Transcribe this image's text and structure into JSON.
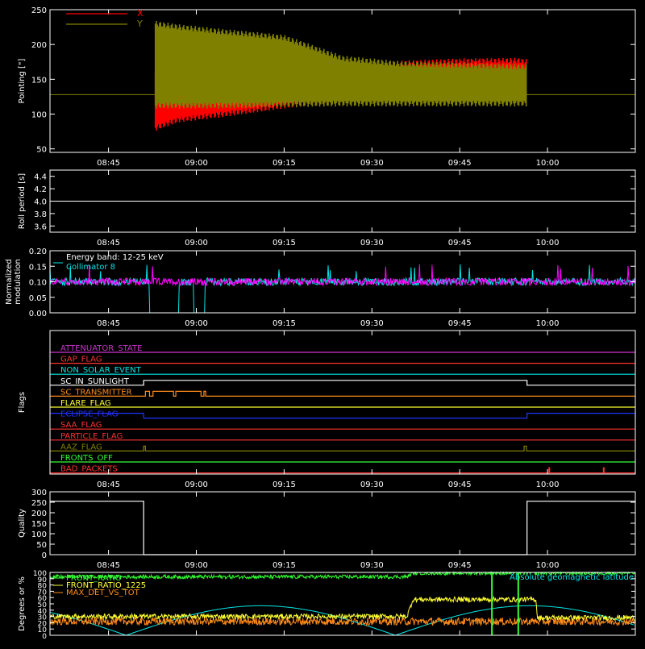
{
  "colors": {
    "background": "#000000",
    "axis": "#ffffff",
    "x_pointing": "#ff0000",
    "y_pointing": "#808000",
    "collimator_magenta": "#ff00ff",
    "collimator_cyan": "#00e6e6",
    "front_ratio": "#33ff33",
    "front_ratio_1225": "#ffff33",
    "max_det": "#ff8c1a",
    "geomag": "#00e6e6"
  },
  "shared_x": {
    "tick_labels": [
      "08:45",
      "09:00",
      "09:15",
      "09:30",
      "09:45",
      "10:00"
    ],
    "tick_minutes": [
      525,
      540,
      555,
      570,
      585,
      600
    ],
    "range_minutes": [
      515,
      615
    ]
  },
  "chart_data": [
    {
      "id": "pointing",
      "type": "area",
      "ylabel": "Pointing [\"]",
      "ylim": [
        45,
        250
      ],
      "yticks": [
        50,
        100,
        150,
        200,
        250
      ],
      "legend": [
        {
          "label": "X",
          "color": "#ff0000"
        },
        {
          "label": "Y",
          "color": "#808000"
        }
      ],
      "baseline_value": 128,
      "series": [
        {
          "name": "X",
          "envelope_minutes": [
            533,
            537,
            545,
            555,
            565,
            575,
            585,
            595,
            596.5
          ],
          "upper": [
            160,
            158,
            150,
            144,
            160,
            173,
            176,
            177,
            175
          ],
          "lower": [
            80,
            92,
            100,
            112,
            120,
            123,
            122,
            120,
            115
          ]
        },
        {
          "name": "Y",
          "envelope_minutes": [
            533,
            537,
            545,
            555,
            565,
            575,
            585,
            595,
            596.5
          ],
          "upper": [
            230,
            225,
            218,
            210,
            180,
            172,
            170,
            168,
            168
          ],
          "lower": [
            112,
            112,
            112,
            114,
            115,
            115,
            115,
            115,
            115
          ]
        }
      ]
    },
    {
      "id": "roll",
      "type": "line",
      "ylabel": "Roll period [s]",
      "ylim": [
        3.5,
        4.5
      ],
      "yticks": [
        3.6,
        3.8,
        4.0,
        4.2,
        4.4
      ],
      "ytick_labels": [
        "3.6",
        "3.8",
        "4.0",
        "4.2",
        "4.4"
      ],
      "value": 4.0
    },
    {
      "id": "modulation",
      "type": "line",
      "ylabel": "Normalized modulation",
      "ylim": [
        0.0,
        0.2
      ],
      "yticks": [
        0.0,
        0.05,
        0.1,
        0.15,
        0.2
      ],
      "ytick_labels": [
        "0.00",
        "0.05",
        "0.10",
        "0.15",
        "0.20"
      ],
      "annotation": "Energy band: 12-25 keV",
      "legend": [
        {
          "label": "Collimator 8",
          "color": "#00e6e6"
        }
      ],
      "mean_value": 0.1,
      "noise": 0.012,
      "cyan_dropouts_minutes": [
        [
          532,
          537
        ],
        [
          539.5,
          541.5
        ]
      ]
    },
    {
      "id": "flags",
      "type": "line",
      "ylabel": "Flags",
      "flags": [
        {
          "name": "ATTENUATOR_STATE",
          "color": "#cc33cc",
          "segments": []
        },
        {
          "name": "GAP_FLAG",
          "color": "#ff3333",
          "segments": []
        },
        {
          "name": "NON_SOLAR_EVENT",
          "color": "#00e6e6",
          "segments": []
        },
        {
          "name": "SC_IN_SUNLIGHT",
          "color": "#ffffff",
          "segments": [
            [
              531,
              596.5
            ]
          ]
        },
        {
          "name": "SC_TRANSMITTER",
          "color": "#ff8c1a",
          "segments": [
            [
              531.3,
              532
            ],
            [
              532.6,
              536.1
            ],
            [
              536.5,
              540.8
            ],
            [
              541.3,
              541.6
            ]
          ]
        },
        {
          "name": "FLARE_FLAG",
          "color": "#ffff33",
          "segments": []
        },
        {
          "name": "ECLIPSE_FLAG",
          "color": "#2233ff",
          "segments": [
            [
              515,
              531
            ],
            [
              596.5,
              615
            ]
          ]
        },
        {
          "name": "SAA_FLAG",
          "color": "#ff3333",
          "segments": []
        },
        {
          "name": "PARTICLE_FLAG",
          "color": "#ff3333",
          "segments": []
        },
        {
          "name": "AAZ_FLAG",
          "color": "#808000",
          "segments": [
            [
              531,
              531.3
            ],
            [
              596,
              596.4
            ]
          ]
        },
        {
          "name": "FRONTS_OFF",
          "color": "#33ff33",
          "segments": []
        },
        {
          "name": "BAD_PACKETS",
          "color": "#ff3333",
          "spikes_minutes": [
            600.3,
            609.6
          ]
        }
      ]
    },
    {
      "id": "quality",
      "type": "line",
      "ylabel": "Quality",
      "ylim": [
        0,
        300
      ],
      "yticks": [
        0,
        50,
        100,
        150,
        200,
        250,
        300
      ],
      "steps": [
        [
          515,
          255
        ],
        [
          531,
          0
        ],
        [
          596.5,
          255
        ],
        [
          615,
          255
        ]
      ]
    },
    {
      "id": "ratios",
      "type": "line",
      "ylabel": "Degrees or %",
      "ylim": [
        0,
        100
      ],
      "yticks": [
        0,
        10,
        20,
        30,
        40,
        50,
        60,
        70,
        80,
        90,
        100
      ],
      "legend": [
        {
          "label": "FRONT_RATIO",
          "color": "#33ff33"
        },
        {
          "label": "FRONT_RATIO_1225",
          "color": "#ffff33"
        },
        {
          "label": "MAX_DET_VS_TOT",
          "color": "#ff8c1a"
        }
      ],
      "right_label": "Absolute geomagnetic latitude",
      "front_ratio": {
        "minutes": [
          515,
          576,
          577,
          615
        ],
        "values": [
          93,
          93,
          99,
          99
        ]
      },
      "front_ratio_1225": {
        "minutes": [
          515,
          576,
          577,
          598,
          598.3,
          615
        ],
        "values": [
          30,
          30,
          57,
          57,
          28,
          28
        ]
      },
      "max_det_vs_tot": {
        "mean": 22
      },
      "geomag_latitude": {
        "period_minutes": 46,
        "amplitude": 47,
        "phase_minutes": 528
      }
    }
  ]
}
